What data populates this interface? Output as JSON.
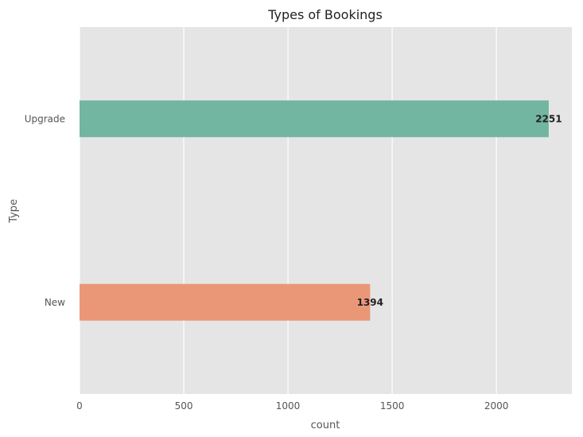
{
  "chart_data": {
    "type": "bar",
    "orientation": "horizontal",
    "title": "Types of Bookings",
    "xlabel": "count",
    "ylabel": "Type",
    "categories": [
      "Upgrade",
      "New"
    ],
    "values": [
      2251,
      1394
    ],
    "data_labels": [
      "2251",
      "1394"
    ],
    "xlim": [
      0,
      2362
    ],
    "xticks": [
      0,
      500,
      1000,
      1500,
      2000
    ],
    "xtick_labels": [
      "0",
      "500",
      "1000",
      "1500",
      "2000"
    ],
    "grid": true,
    "colors": {
      "plot_background": "#e5e5e5",
      "gridline": "#ffffff",
      "bars": [
        "#72b5a1",
        "#ea9778"
      ]
    }
  }
}
